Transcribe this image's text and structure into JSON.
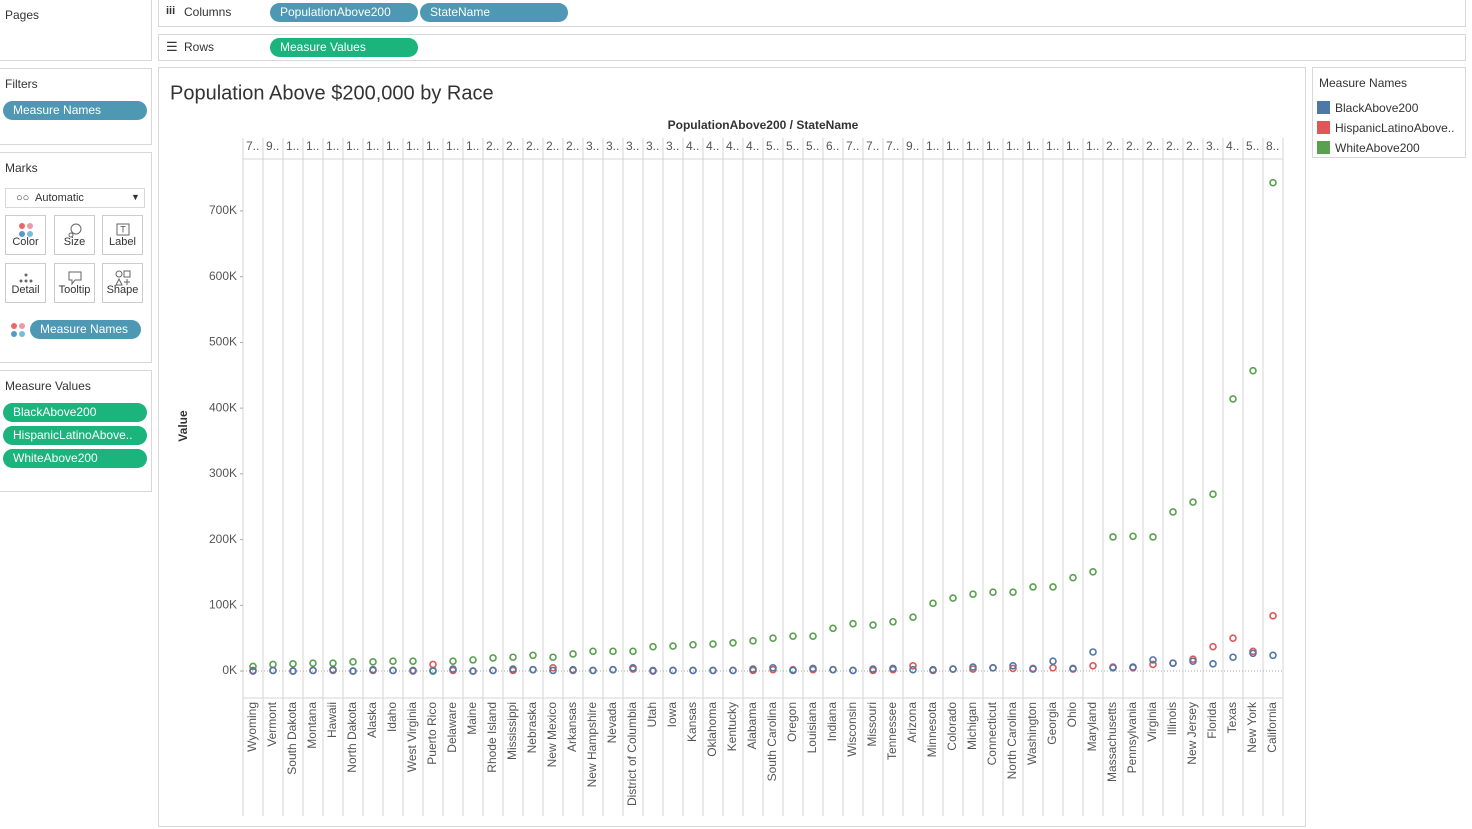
{
  "ui": {
    "pages": "Pages",
    "columns_label": "Columns",
    "columns_pills": [
      "PopulationAbove200",
      "StateName"
    ],
    "rows_label": "Rows",
    "rows_pills": [
      "Measure Values"
    ],
    "filters": {
      "title": "Filters",
      "pills": [
        "Measure Names"
      ]
    },
    "marks": {
      "title": "Marks",
      "mark_type": "Automatic",
      "cards": [
        "Color",
        "Size",
        "Label",
        "Detail",
        "Tooltip",
        "Shape"
      ],
      "pills": [
        "Measure Names"
      ]
    },
    "measure_values": {
      "title": "Measure Values",
      "pills": [
        "BlackAbove200",
        "HispanicLatinoAbove..",
        "WhiteAbove200"
      ]
    }
  },
  "chart_data": {
    "type": "dot",
    "title": "Population Above $200,000 by Race",
    "header": "PopulationAbove200 / StateName",
    "y_label": "Value",
    "legend_title": "Measure Names",
    "column_headers": [
      "7..",
      "9..",
      "1..",
      "1..",
      "1..",
      "1..",
      "1..",
      "1..",
      "1..",
      "1..",
      "1..",
      "1..",
      "2..",
      "2..",
      "2..",
      "2..",
      "2..",
      "3..",
      "3..",
      "3..",
      "3..",
      "3..",
      "4..",
      "4..",
      "4..",
      "4..",
      "5..",
      "5..",
      "5..",
      "6..",
      "7..",
      "7..",
      "7..",
      "9..",
      "1..",
      "1..",
      "1..",
      "1..",
      "1..",
      "1..",
      "1..",
      "1..",
      "1..",
      "2..",
      "2..",
      "2..",
      "2..",
      "2..",
      "3..",
      "4..",
      "5..",
      "8.."
    ],
    "categories": [
      "Wyoming",
      "Vermont",
      "South Dakota",
      "Montana",
      "Hawaii",
      "North Dakota",
      "Alaska",
      "Idaho",
      "West Virginia",
      "Puerto Rico",
      "Delaware",
      "Maine",
      "Rhode Island",
      "Mississippi",
      "Nebraska",
      "New Mexico",
      "Arkansas",
      "New Hampshire",
      "Nevada",
      "District of Columbia",
      "Utah",
      "Iowa",
      "Kansas",
      "Oklahoma",
      "Kentucky",
      "Alabama",
      "South Carolina",
      "Oregon",
      "Louisiana",
      "Indiana",
      "Wisconsin",
      "Missouri",
      "Tennessee",
      "Arizona",
      "Minnesota",
      "Colorado",
      "Michigan",
      "Connecticut",
      "North Carolina",
      "Washington",
      "Georgia",
      "Ohio",
      "Maryland",
      "Massachusetts",
      "Pennsylvania",
      "Virginia",
      "Illinois",
      "New Jersey",
      "Florida",
      "Texas",
      "New York",
      "California"
    ],
    "series": [
      {
        "name": "BlackAbove200",
        "color": "#4e79a7",
        "values": [
          0,
          1000,
          0,
          1000,
          2000,
          0,
          2000,
          1000,
          1000,
          0,
          3000,
          0,
          1000,
          3000,
          2000,
          1000,
          2000,
          1000,
          2000,
          5000,
          0,
          1000,
          1000,
          1000,
          1000,
          3000,
          5000,
          1000,
          4000,
          2000,
          1000,
          3000,
          4000,
          2000,
          2000,
          3000,
          6000,
          5000,
          8000,
          3000,
          15000,
          4000,
          29000,
          5000,
          6000,
          17000,
          12000,
          15000,
          11000,
          21000,
          27000,
          24000
        ]
      },
      {
        "name": "HispanicLatinoAbove..",
        "color": "#e15759",
        "values": [
          1000,
          1000,
          0,
          1000,
          1000,
          0,
          1000,
          1000,
          0,
          10000,
          1000,
          0,
          1000,
          1000,
          2000,
          5000,
          1000,
          1000,
          2000,
          3000,
          1000,
          1000,
          1000,
          1000,
          1000,
          1000,
          2000,
          2000,
          2000,
          2000,
          1000,
          1000,
          2000,
          8000,
          1000,
          3000,
          3000,
          5000,
          4000,
          4000,
          5000,
          3000,
          8000,
          6000,
          5000,
          10000,
          12000,
          18000,
          37000,
          50000,
          30000,
          84000
        ]
      },
      {
        "name": "WhiteAbove200",
        "color": "#59a14f",
        "values": [
          7000,
          10000,
          11000,
          12000,
          12000,
          14000,
          14000,
          15000,
          15000,
          1000,
          15000,
          17000,
          20000,
          21000,
          24000,
          21000,
          26000,
          30000,
          30000,
          30000,
          37000,
          38000,
          40000,
          41000,
          43000,
          46000,
          50000,
          53000,
          53000,
          65000,
          72000,
          70000,
          75000,
          82000,
          103000,
          111000,
          117000,
          120000,
          120000,
          128000,
          128000,
          142000,
          151000,
          204000,
          205000,
          204000,
          242000,
          257000,
          269000,
          414000,
          457000,
          743000
        ]
      }
    ],
    "ylim": [
      -41000,
      779000
    ],
    "yticks": [
      {
        "value": 0,
        "label": "0K"
      },
      {
        "value": 100000,
        "label": "100K"
      },
      {
        "value": 200000,
        "label": "200K"
      },
      {
        "value": 300000,
        "label": "300K"
      },
      {
        "value": 400000,
        "label": "400K"
      },
      {
        "value": 500000,
        "label": "500K"
      },
      {
        "value": 600000,
        "label": "600K"
      },
      {
        "value": 700000,
        "label": "700K"
      }
    ]
  }
}
